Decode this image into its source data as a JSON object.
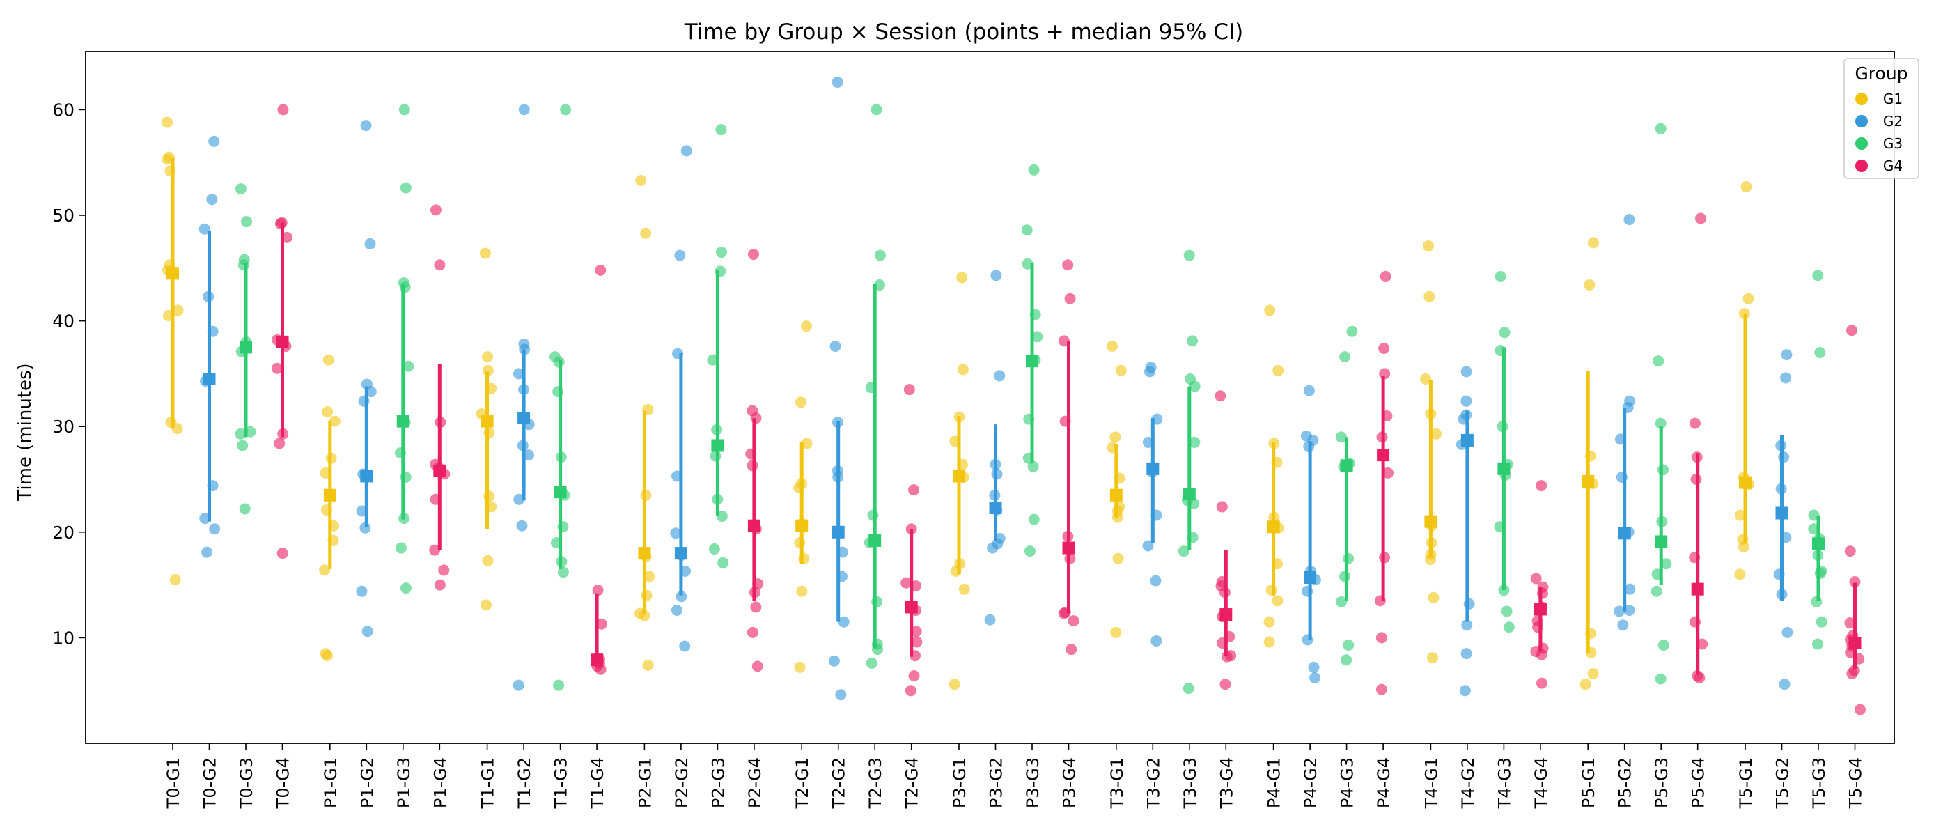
{
  "chart_data": {
    "type": "scatter",
    "title": "Time by Group × Session (points + median 95% CI)",
    "xlabel": "",
    "ylabel": "Time (minutes)",
    "ylim": [
      0,
      65.5
    ],
    "yticks": [
      10,
      20,
      30,
      40,
      50,
      60
    ],
    "grid": false,
    "legend": {
      "title": "Group",
      "placement": "top-right",
      "entries": [
        {
          "name": "G1",
          "color": "#f1c40f"
        },
        {
          "name": "G2",
          "color": "#3498db"
        },
        {
          "name": "G3",
          "color": "#2ecc71"
        },
        {
          "name": "G4",
          "color": "#e91e63"
        }
      ]
    },
    "categories": [
      {
        "label": "T0-G1",
        "group": "G1",
        "median": 44.5,
        "ci": [
          29.8,
          55.4
        ],
        "points": [
          58.8,
          55.5,
          55.3,
          54.2,
          45.3,
          44.8,
          41.0,
          40.5,
          30.4,
          29.8,
          15.5
        ]
      },
      {
        "label": "T0-G2",
        "group": "G2",
        "median": 34.5,
        "ci": [
          21.0,
          48.5
        ],
        "points": [
          57.0,
          51.5,
          48.7,
          42.3,
          39.0,
          34.3,
          24.4,
          21.3,
          20.3,
          18.1
        ]
      },
      {
        "label": "T0-G3",
        "group": "G3",
        "median": 37.5,
        "ci": [
          29.0,
          45.5
        ],
        "points": [
          52.5,
          49.4,
          45.8,
          45.3,
          38.0,
          37.1,
          29.3,
          29.5,
          28.2,
          22.2
        ]
      },
      {
        "label": "T0-G4",
        "group": "G4",
        "median": 38.0,
        "ci": [
          29.0,
          49.3
        ],
        "points": [
          60.0,
          49.3,
          49.2,
          47.9,
          38.2,
          37.6,
          35.5,
          29.3,
          28.4,
          18.0
        ]
      },
      {
        "label": "P1-G1",
        "group": "G1",
        "median": 23.5,
        "ci": [
          16.5,
          30.5
        ],
        "points": [
          36.3,
          31.4,
          30.5,
          27.0,
          25.6,
          22.1,
          20.6,
          19.2,
          16.4,
          8.5,
          8.3
        ]
      },
      {
        "label": "P1-G2",
        "group": "G2",
        "median": 25.3,
        "ci": [
          20.5,
          33.8
        ],
        "points": [
          58.5,
          47.3,
          34.0,
          33.3,
          32.4,
          25.5,
          22.0,
          20.4,
          14.4,
          10.6
        ]
      },
      {
        "label": "P1-G3",
        "group": "G3",
        "median": 30.5,
        "ci": [
          21.2,
          43.5
        ],
        "points": [
          60.0,
          52.6,
          43.6,
          43.2,
          35.7,
          30.4,
          27.5,
          25.2,
          21.3,
          18.5,
          14.7
        ]
      },
      {
        "label": "P1-G4",
        "group": "G4",
        "median": 25.8,
        "ci": [
          18.3,
          35.9
        ],
        "points": [
          50.5,
          45.3,
          30.4,
          26.4,
          26.1,
          25.5,
          23.1,
          18.3,
          16.4,
          15.0
        ]
      },
      {
        "label": "T1-G1",
        "group": "G1",
        "median": 30.5,
        "ci": [
          20.3,
          35.2
        ],
        "points": [
          46.4,
          36.6,
          35.3,
          33.6,
          31.2,
          29.4,
          23.4,
          22.4,
          17.3,
          13.1
        ]
      },
      {
        "label": "T1-G2",
        "group": "G2",
        "median": 30.8,
        "ci": [
          23.0,
          37.2
        ],
        "points": [
          60.0,
          37.8,
          37.3,
          35.0,
          33.5,
          30.2,
          28.2,
          27.3,
          23.1,
          20.6,
          5.5
        ]
      },
      {
        "label": "T1-G3",
        "group": "G3",
        "median": 23.8,
        "ci": [
          16.5,
          36.3
        ],
        "points": [
          60.0,
          36.6,
          36.1,
          33.3,
          27.1,
          23.5,
          20.5,
          19.0,
          17.2,
          16.2,
          5.5
        ]
      },
      {
        "label": "T1-G4",
        "group": "G4",
        "median": 7.9,
        "ci": [
          7.3,
          14.2
        ],
        "points": [
          44.8,
          14.5,
          11.3,
          8.0,
          7.6,
          7.3,
          7.0
        ]
      },
      {
        "label": "P2-G1",
        "group": "G1",
        "median": 18.0,
        "ci": [
          12.3,
          31.5
        ],
        "points": [
          53.3,
          48.3,
          31.6,
          23.5,
          17.7,
          15.8,
          14.0,
          12.3,
          12.1,
          7.4
        ]
      },
      {
        "label": "P2-G2",
        "group": "G2",
        "median": 18.0,
        "ci": [
          14.0,
          37.0
        ],
        "points": [
          56.1,
          46.2,
          36.9,
          25.3,
          19.9,
          17.8,
          16.3,
          13.9,
          12.6,
          9.2
        ]
      },
      {
        "label": "P2-G3",
        "group": "G3",
        "median": 28.2,
        "ci": [
          21.5,
          44.8
        ],
        "points": [
          58.1,
          46.5,
          44.7,
          36.3,
          29.7,
          27.2,
          23.1,
          21.5,
          18.4,
          17.1
        ]
      },
      {
        "label": "P2-G4",
        "group": "G4",
        "median": 20.6,
        "ci": [
          13.5,
          30.8
        ],
        "points": [
          46.3,
          31.5,
          30.8,
          27.4,
          26.3,
          20.3,
          15.1,
          14.3,
          12.9,
          10.5,
          7.3
        ]
      },
      {
        "label": "T2-G1",
        "group": "G1",
        "median": 20.6,
        "ci": [
          17.0,
          28.5
        ],
        "points": [
          39.5,
          32.3,
          28.4,
          24.6,
          24.2,
          20.8,
          19.0,
          17.5,
          14.4,
          7.2
        ]
      },
      {
        "label": "T2-G2",
        "group": "G2",
        "median": 20.0,
        "ci": [
          11.5,
          30.5
        ],
        "points": [
          62.6,
          37.6,
          30.4,
          25.8,
          25.2,
          20.1,
          18.1,
          15.8,
          11.5,
          7.8,
          4.6
        ]
      },
      {
        "label": "T2-G3",
        "group": "G3",
        "median": 19.2,
        "ci": [
          9.0,
          43.5
        ],
        "points": [
          60.0,
          46.2,
          43.4,
          33.7,
          21.6,
          19.0,
          13.4,
          9.4,
          8.9,
          7.6
        ]
      },
      {
        "label": "T2-G4",
        "group": "G4",
        "median": 12.9,
        "ci": [
          8.2,
          20.3
        ],
        "points": [
          33.5,
          24.0,
          20.3,
          15.2,
          14.9,
          12.6,
          10.6,
          9.6,
          8.3,
          6.4,
          5.0
        ]
      },
      {
        "label": "P3-G1",
        "group": "G1",
        "median": 25.3,
        "ci": [
          16.0,
          31.0
        ],
        "points": [
          44.1,
          35.4,
          30.9,
          28.6,
          26.4,
          25.2,
          17.0,
          16.3,
          14.6,
          5.6
        ]
      },
      {
        "label": "P3-G2",
        "group": "G2",
        "median": 22.3,
        "ci": [
          19.2,
          30.2
        ],
        "points": [
          44.3,
          34.8,
          26.4,
          25.5,
          23.5,
          22.1,
          19.4,
          18.9,
          18.5,
          11.7
        ]
      },
      {
        "label": "P3-G3",
        "group": "G3",
        "median": 36.2,
        "ci": [
          26.5,
          45.5
        ],
        "points": [
          54.3,
          48.6,
          45.4,
          40.6,
          38.5,
          36.3,
          30.7,
          27.0,
          26.2,
          21.2,
          18.2
        ]
      },
      {
        "label": "P3-G4",
        "group": "G4",
        "median": 18.5,
        "ci": [
          12.3,
          38.1
        ],
        "points": [
          45.3,
          42.1,
          38.1,
          30.5,
          19.6,
          17.5,
          12.4,
          12.3,
          11.6,
          8.9
        ]
      },
      {
        "label": "T3-G1",
        "group": "G1",
        "median": 23.5,
        "ci": [
          21.3,
          28.3
        ],
        "points": [
          37.6,
          35.3,
          29.0,
          28.0,
          25.1,
          22.4,
          22.0,
          21.4,
          17.5,
          10.5
        ]
      },
      {
        "label": "T3-G2",
        "group": "G2",
        "median": 26.0,
        "ci": [
          19.0,
          30.8
        ],
        "points": [
          35.6,
          35.2,
          30.7,
          28.5,
          25.7,
          21.6,
          18.7,
          15.4,
          9.7
        ]
      },
      {
        "label": "T3-G3",
        "group": "G3",
        "median": 23.6,
        "ci": [
          18.3,
          33.8
        ],
        "points": [
          46.2,
          38.1,
          34.5,
          33.8,
          28.5,
          23.0,
          22.7,
          19.5,
          18.2,
          5.2
        ]
      },
      {
        "label": "T3-G4",
        "group": "G4",
        "median": 12.2,
        "ci": [
          8.3,
          18.3
        ],
        "points": [
          32.9,
          22.4,
          15.3,
          14.9,
          14.3,
          12.0,
          10.1,
          9.5,
          8.3,
          8.2,
          5.6
        ]
      },
      {
        "label": "P4-G1",
        "group": "G1",
        "median": 20.5,
        "ci": [
          14.0,
          28.5
        ],
        "points": [
          41.0,
          35.3,
          28.4,
          26.6,
          21.4,
          20.4,
          17.0,
          14.5,
          13.5,
          11.5,
          9.6
        ]
      },
      {
        "label": "P4-G2",
        "group": "G2",
        "median": 15.7,
        "ci": [
          9.8,
          28.6
        ],
        "points": [
          33.4,
          29.1,
          28.7,
          28.1,
          16.3,
          15.5,
          14.4,
          9.8,
          7.2,
          6.2
        ]
      },
      {
        "label": "P4-G3",
        "group": "G3",
        "median": 26.3,
        "ci": [
          13.5,
          29.0
        ],
        "points": [
          39.0,
          36.6,
          29.0,
          26.5,
          26.2,
          17.5,
          15.8,
          13.4,
          9.3,
          7.9
        ]
      },
      {
        "label": "P4-G4",
        "group": "G4",
        "median": 27.3,
        "ci": [
          13.5,
          34.8
        ],
        "points": [
          44.2,
          37.4,
          35.0,
          31.0,
          29.0,
          25.6,
          17.6,
          13.5,
          10.0,
          5.1
        ]
      },
      {
        "label": "T4-G1",
        "group": "G1",
        "median": 21.0,
        "ci": [
          17.6,
          34.4
        ],
        "points": [
          47.1,
          42.3,
          34.5,
          31.2,
          29.3,
          20.6,
          19.0,
          17.9,
          17.4,
          13.8,
          8.1
        ]
      },
      {
        "label": "T4-G2",
        "group": "G2",
        "median": 28.7,
        "ci": [
          11.5,
          31.5
        ],
        "points": [
          35.2,
          32.4,
          31.1,
          30.7,
          28.3,
          13.2,
          11.2,
          8.5,
          5.0
        ]
      },
      {
        "label": "T4-G3",
        "group": "G3",
        "median": 26.0,
        "ci": [
          14.5,
          37.5
        ],
        "points": [
          44.2,
          38.9,
          37.2,
          30.0,
          26.4,
          25.4,
          20.5,
          14.5,
          12.5,
          11.0
        ]
      },
      {
        "label": "T4-G4",
        "group": "G4",
        "median": 12.7,
        "ci": [
          8.7,
          14.8
        ],
        "points": [
          24.4,
          15.6,
          14.8,
          14.2,
          12.9,
          11.6,
          11.0,
          9.0,
          8.7,
          8.4,
          5.7
        ]
      },
      {
        "label": "P5-G1",
        "group": "G1",
        "median": 24.8,
        "ci": [
          8.5,
          35.3
        ],
        "points": [
          47.4,
          43.4,
          27.2,
          24.6,
          10.4,
          8.6,
          6.6,
          5.6
        ]
      },
      {
        "label": "P5-G2",
        "group": "G2",
        "median": 19.9,
        "ci": [
          12.5,
          31.8
        ],
        "points": [
          49.6,
          32.4,
          31.8,
          28.8,
          25.2,
          20.0,
          14.6,
          12.6,
          12.5,
          11.2
        ]
      },
      {
        "label": "P5-G3",
        "group": "G3",
        "median": 19.1,
        "ci": [
          15.0,
          30.0
        ],
        "points": [
          58.2,
          36.2,
          30.3,
          25.9,
          21.0,
          17.0,
          16.0,
          14.4,
          9.3,
          6.1
        ]
      },
      {
        "label": "P5-G4",
        "group": "G4",
        "median": 14.6,
        "ci": [
          6.5,
          27.5
        ],
        "points": [
          49.7,
          30.3,
          27.1,
          25.0,
          17.6,
          11.5,
          9.4,
          6.4,
          6.2
        ]
      },
      {
        "label": "T5-G1",
        "group": "G1",
        "median": 24.7,
        "ci": [
          19.0,
          40.7
        ],
        "points": [
          52.7,
          42.1,
          40.7,
          25.2,
          24.5,
          21.6,
          19.3,
          18.6,
          16.0
        ]
      },
      {
        "label": "T5-G2",
        "group": "G2",
        "median": 21.8,
        "ci": [
          13.5,
          29.2
        ],
        "points": [
          36.8,
          34.6,
          28.2,
          27.1,
          24.1,
          19.5,
          16.0,
          14.1,
          10.5,
          5.6
        ]
      },
      {
        "label": "T5-G3",
        "group": "G3",
        "median": 18.9,
        "ci": [
          13.5,
          21.5
        ],
        "points": [
          44.3,
          37.0,
          21.6,
          20.3,
          19.4,
          17.8,
          16.3,
          16.1,
          13.4,
          11.5,
          9.4
        ]
      },
      {
        "label": "T5-G4",
        "group": "G4",
        "median": 9.5,
        "ci": [
          7.0,
          15.2
        ],
        "points": [
          39.1,
          18.2,
          15.3,
          11.4,
          10.2,
          9.8,
          9.2,
          8.6,
          8.0,
          6.9,
          6.6,
          3.2
        ]
      }
    ]
  }
}
